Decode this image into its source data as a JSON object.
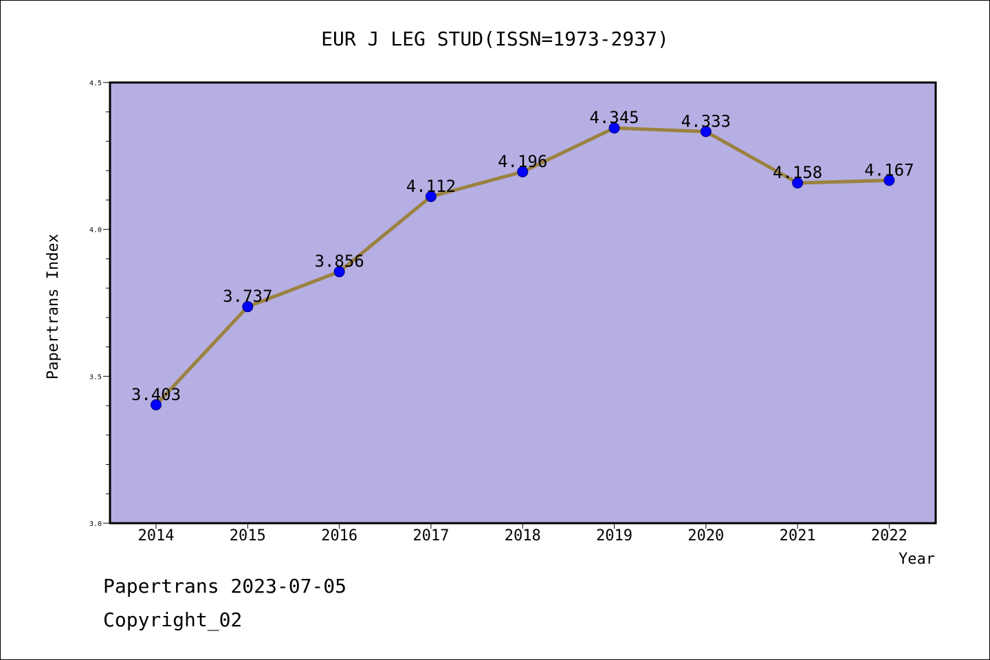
{
  "chart_data": {
    "type": "line",
    "title": "EUR J LEG STUD(ISSN=1973-2937)",
    "xlabel": "Year",
    "ylabel": "Papertrans Index",
    "categories": [
      "2014",
      "2015",
      "2016",
      "2017",
      "2018",
      "2019",
      "2020",
      "2021",
      "2022"
    ],
    "series": [
      {
        "values": [
          3.403,
          3.737,
          3.856,
          4.112,
          4.196,
          4.345,
          4.333,
          4.158,
          4.167
        ],
        "labels": [
          "3.403",
          "3.737",
          "3.856",
          "4.112",
          "4.196",
          "4.345",
          "4.333",
          "4.158",
          "4.167"
        ]
      }
    ],
    "ylim": [
      3.0,
      4.5
    ],
    "yticks": [
      "3.0",
      "3.5",
      "4.0",
      "4.5"
    ],
    "grid": false,
    "colors": {
      "plot_background": "#b5afe3",
      "line": "#9b8240",
      "marker": "#0000ff"
    }
  },
  "footer": {
    "line1": "Papertrans 2023-07-05",
    "line2": "Copyright_02"
  }
}
